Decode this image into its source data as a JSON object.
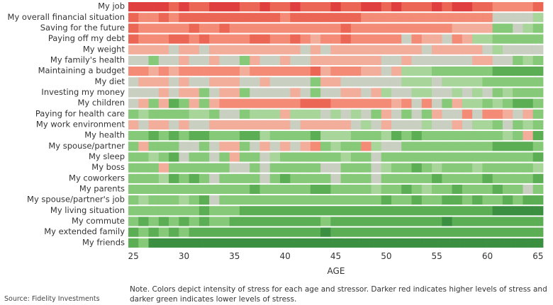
{
  "chart_data": {
    "type": "heatmap",
    "xlabel": "AGE",
    "x": [
      25,
      26,
      27,
      28,
      29,
      30,
      31,
      32,
      33,
      34,
      35,
      36,
      37,
      38,
      39,
      40,
      41,
      42,
      43,
      44,
      45,
      46,
      47,
      48,
      49,
      50,
      51,
      52,
      53,
      54,
      55,
      56,
      57,
      58,
      59,
      60,
      61,
      62,
      63,
      64,
      65
    ],
    "x_ticks": [
      "25",
      "30",
      "35",
      "40",
      "45",
      "50",
      "55",
      "60",
      "65"
    ],
    "rows": [
      "My job",
      "My overall financial situation",
      "Saving for the future",
      "Paying off my debt",
      "My weight",
      "My family's health",
      "Maintaining a budget",
      "My diet",
      "Investing my money",
      "My children",
      "Paying for health care",
      "My work environment",
      "My health",
      "My spouse/partner",
      "My sleep",
      "My boss",
      "My coworkers",
      "My parents",
      "My spouse/partner's job",
      "My living situation",
      "My commute",
      "My extended family",
      "My friends"
    ],
    "scale": "stress intensity 1 (lowest, dark green) to 9 (highest, dark red)",
    "colors": [
      "#3a8f40",
      "#5cae55",
      "#86c978",
      "#a7d59a",
      "#c9cfc1",
      "#f3ad9b",
      "#f48b77",
      "#ec6655",
      "#df3f3f"
    ],
    "values": [
      [
        9,
        9,
        9,
        9,
        8,
        9,
        8,
        8,
        9,
        9,
        9,
        8,
        8,
        9,
        8,
        8,
        9,
        8,
        8,
        8,
        9,
        8,
        8,
        9,
        9,
        8,
        9,
        8,
        8,
        8,
        9,
        8,
        9,
        9,
        8,
        8,
        7,
        7,
        7,
        7,
        8
      ],
      [
        8,
        7,
        7,
        8,
        7,
        8,
        8,
        8,
        8,
        8,
        8,
        8,
        8,
        8,
        8,
        7,
        8,
        8,
        8,
        8,
        8,
        8,
        8,
        7,
        7,
        7,
        7,
        7,
        7,
        7,
        7,
        7,
        7,
        7,
        7,
        7,
        5,
        5,
        5,
        5,
        4
      ],
      [
        8,
        7,
        7,
        7,
        7,
        7,
        8,
        7,
        7,
        8,
        7,
        7,
        7,
        7,
        7,
        7,
        7,
        7,
        7,
        7,
        7,
        8,
        7,
        7,
        7,
        7,
        7,
        7,
        7,
        7,
        7,
        7,
        6,
        6,
        6,
        6,
        3,
        3,
        5,
        4,
        3
      ],
      [
        8,
        7,
        7,
        7,
        8,
        8,
        7,
        8,
        7,
        7,
        7,
        7,
        8,
        8,
        7,
        7,
        8,
        7,
        6,
        7,
        7,
        8,
        7,
        7,
        7,
        7,
        7,
        5,
        7,
        6,
        6,
        5,
        7,
        6,
        4,
        4,
        3,
        3,
        3,
        3,
        3
      ],
      [
        6,
        6,
        6,
        6,
        5,
        6,
        6,
        5,
        6,
        6,
        6,
        6,
        6,
        6,
        6,
        6,
        6,
        5,
        6,
        5,
        6,
        6,
        6,
        6,
        6,
        6,
        6,
        6,
        6,
        5,
        6,
        6,
        6,
        6,
        6,
        5,
        4,
        5,
        5,
        5,
        5
      ],
      [
        5,
        5,
        3,
        5,
        5,
        6,
        5,
        5,
        6,
        5,
        5,
        3,
        6,
        5,
        5,
        6,
        5,
        5,
        6,
        6,
        6,
        6,
        6,
        6,
        6,
        5,
        5,
        6,
        5,
        5,
        5,
        5,
        5,
        5,
        6,
        6,
        5,
        5,
        3,
        4,
        3
      ],
      [
        7,
        7,
        6,
        7,
        6,
        7,
        7,
        7,
        7,
        7,
        7,
        6,
        7,
        7,
        7,
        7,
        7,
        7,
        8,
        6,
        7,
        7,
        7,
        6,
        6,
        5,
        6,
        4,
        4,
        4,
        3,
        3,
        3,
        3,
        3,
        3,
        2,
        2,
        2,
        2,
        2
      ],
      [
        5,
        6,
        6,
        6,
        5,
        6,
        5,
        5,
        6,
        6,
        6,
        5,
        5,
        6,
        5,
        5,
        5,
        5,
        3,
        6,
        6,
        5,
        5,
        5,
        5,
        5,
        5,
        4,
        4,
        4,
        5,
        4,
        4,
        4,
        4,
        3,
        3,
        3,
        3,
        3,
        3
      ],
      [
        5,
        5,
        5,
        6,
        5,
        6,
        6,
        3,
        5,
        6,
        6,
        3,
        5,
        5,
        5,
        5,
        6,
        5,
        3,
        5,
        5,
        6,
        6,
        5,
        6,
        4,
        5,
        5,
        4,
        4,
        5,
        5,
        4,
        5,
        4,
        5,
        3,
        4,
        3,
        3,
        3
      ],
      [
        5,
        6,
        3,
        6,
        2,
        3,
        6,
        3,
        6,
        7,
        7,
        7,
        7,
        7,
        7,
        7,
        7,
        8,
        8,
        8,
        7,
        7,
        7,
        7,
        7,
        7,
        6,
        7,
        5,
        7,
        5,
        3,
        6,
        4,
        4,
        3,
        4,
        3,
        2,
        2,
        3
      ],
      [
        3,
        4,
        3,
        3,
        3,
        3,
        4,
        4,
        3,
        5,
        5,
        3,
        4,
        4,
        4,
        6,
        4,
        4,
        4,
        5,
        4,
        5,
        4,
        5,
        3,
        6,
        5,
        3,
        5,
        3,
        6,
        5,
        5,
        7,
        5,
        7,
        7,
        6,
        5,
        6,
        3
      ],
      [
        6,
        5,
        6,
        6,
        5,
        6,
        5,
        5,
        6,
        6,
        6,
        6,
        6,
        6,
        6,
        6,
        5,
        6,
        6,
        6,
        6,
        6,
        5,
        4,
        5,
        6,
        5,
        5,
        5,
        4,
        5,
        5,
        6,
        5,
        4,
        4,
        3,
        5,
        3,
        4,
        3
      ],
      [
        3,
        3,
        2,
        3,
        2,
        3,
        2,
        2,
        3,
        3,
        3,
        2,
        2,
        4,
        3,
        3,
        3,
        3,
        2,
        4,
        4,
        4,
        3,
        3,
        3,
        4,
        2,
        3,
        2,
        3,
        3,
        3,
        3,
        3,
        3,
        3,
        3,
        4,
        3,
        6,
        2
      ],
      [
        3,
        6,
        3,
        3,
        3,
        5,
        5,
        3,
        5,
        6,
        6,
        3,
        5,
        6,
        5,
        6,
        5,
        6,
        7,
        3,
        4,
        3,
        3,
        7,
        4,
        5,
        5,
        3,
        3,
        3,
        3,
        3,
        3,
        3,
        3,
        3,
        2,
        2,
        2,
        2,
        3
      ],
      [
        3,
        3,
        4,
        3,
        2,
        5,
        3,
        3,
        5,
        3,
        6,
        3,
        3,
        5,
        4,
        3,
        3,
        3,
        3,
        3,
        3,
        4,
        3,
        3,
        5,
        3,
        3,
        3,
        3,
        3,
        3,
        3,
        3,
        3,
        3,
        3,
        3,
        3,
        3,
        3,
        2
      ],
      [
        3,
        3,
        3,
        6,
        3,
        3,
        3,
        3,
        3,
        3,
        5,
        5,
        3,
        5,
        3,
        3,
        3,
        3,
        3,
        5,
        5,
        3,
        3,
        3,
        5,
        4,
        3,
        3,
        2,
        3,
        4,
        3,
        3,
        3,
        4,
        3,
        3,
        3,
        3,
        3,
        4
      ],
      [
        3,
        3,
        3,
        4,
        2,
        3,
        2,
        3,
        5,
        3,
        3,
        3,
        3,
        5,
        3,
        2,
        3,
        3,
        3,
        3,
        5,
        3,
        3,
        3,
        5,
        3,
        3,
        3,
        3,
        3,
        2,
        3,
        3,
        3,
        3,
        2,
        3,
        3,
        3,
        3,
        2
      ],
      [
        3,
        3,
        3,
        3,
        3,
        3,
        3,
        3,
        3,
        3,
        3,
        3,
        2,
        3,
        3,
        3,
        3,
        3,
        2,
        2,
        3,
        3,
        3,
        3,
        4,
        3,
        3,
        2,
        3,
        4,
        3,
        3,
        2,
        3,
        3,
        3,
        2,
        3,
        3,
        5,
        3
      ],
      [
        3,
        4,
        3,
        3,
        3,
        4,
        3,
        2,
        5,
        3,
        3,
        3,
        3,
        3,
        3,
        3,
        3,
        3,
        3,
        3,
        3,
        3,
        3,
        3,
        3,
        2,
        3,
        3,
        2,
        3,
        3,
        2,
        2,
        3,
        2,
        3,
        3,
        2,
        3,
        2,
        2
      ],
      [
        3,
        3,
        3,
        3,
        3,
        3,
        3,
        2,
        3,
        3,
        3,
        2,
        2,
        2,
        2,
        2,
        2,
        2,
        2,
        2,
        2,
        2,
        2,
        2,
        2,
        2,
        2,
        2,
        2,
        2,
        2,
        2,
        2,
        2,
        2,
        2,
        1,
        1,
        1,
        1,
        1
      ],
      [
        3,
        2,
        3,
        2,
        3,
        2,
        3,
        2,
        3,
        3,
        2,
        2,
        2,
        2,
        2,
        2,
        2,
        2,
        2,
        3,
        2,
        2,
        2,
        2,
        2,
        2,
        2,
        2,
        2,
        2,
        2,
        1,
        2,
        2,
        2,
        2,
        2,
        2,
        2,
        2,
        2
      ],
      [
        2,
        3,
        2,
        3,
        2,
        3,
        2,
        2,
        2,
        2,
        2,
        2,
        2,
        2,
        2,
        2,
        2,
        2,
        2,
        1,
        2,
        2,
        2,
        2,
        2,
        2,
        2,
        2,
        2,
        2,
        2,
        2,
        2,
        2,
        2,
        2,
        2,
        2,
        2,
        2,
        2
      ],
      [
        2,
        3,
        1,
        1,
        1,
        1,
        1,
        1,
        1,
        1,
        1,
        1,
        1,
        1,
        1,
        1,
        1,
        1,
        1,
        1,
        1,
        1,
        1,
        1,
        1,
        1,
        1,
        1,
        1,
        1,
        1,
        1,
        1,
        1,
        1,
        1,
        1,
        1,
        1,
        1,
        1
      ]
    ],
    "grid": false,
    "legend": "none"
  },
  "note": "Note. Colors depict intensity of stress for each age and stressor. Darker red indicates higher levels of stress and darker green indicates lower levels of stress.",
  "source": "Source: Fidelity Investments"
}
